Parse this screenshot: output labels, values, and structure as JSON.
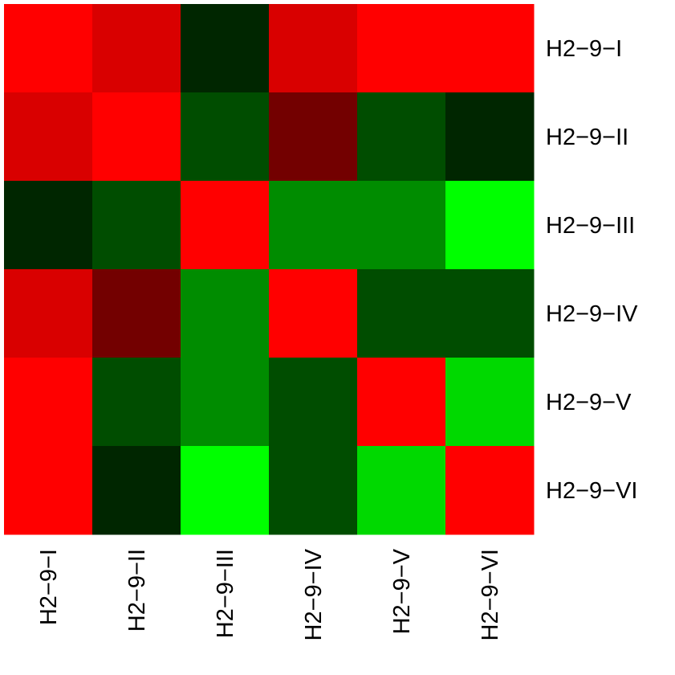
{
  "chart_data": {
    "type": "heatmap",
    "title": "",
    "xlabel": "",
    "ylabel": "",
    "row_labels": [
      "H2−9−I",
      "H2−9−II",
      "H2−9−III",
      "H2−9−IV",
      "H2−9−V",
      "H2−9−VI"
    ],
    "col_labels": [
      "H2−9−I",
      "H2−9−II",
      "H2−9−III",
      "H2−9−IV",
      "H2−9−V",
      "H2−9−VI"
    ],
    "values": [
      [
        1.0,
        0.85,
        -0.15,
        0.85,
        1.0,
        1.0
      ],
      [
        0.85,
        1.0,
        -0.3,
        0.45,
        -0.3,
        -0.15
      ],
      [
        -0.15,
        -0.3,
        1.0,
        -0.55,
        -0.55,
        -1.0
      ],
      [
        0.85,
        0.45,
        -0.55,
        1.0,
        -0.3,
        -0.3
      ],
      [
        1.0,
        -0.3,
        -0.55,
        -0.3,
        1.0,
        -0.85
      ],
      [
        1.0,
        -0.15,
        -1.0,
        -0.3,
        -0.85,
        1.0
      ]
    ],
    "color_scale": {
      "low": "#00ff00",
      "mid": "#000000",
      "high": "#ff0000",
      "range": [
        -1,
        1
      ]
    },
    "legend": "none",
    "grid": false
  }
}
